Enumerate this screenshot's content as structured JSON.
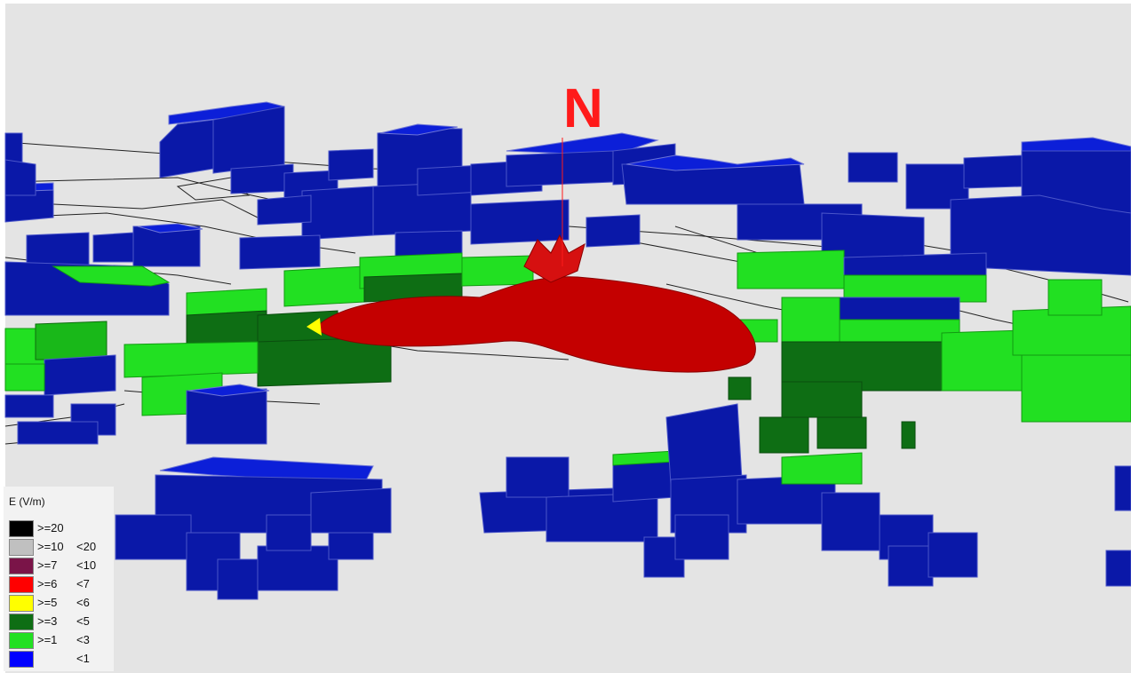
{
  "map": {
    "north_label": "N",
    "colors": {
      "background": "#e4e4e4",
      "building_low": "#0a18a8",
      "building_mid": "#19b819",
      "field_lobe": "#c00000"
    }
  },
  "legend": {
    "title": "E (V/m)",
    "items": [
      {
        "lower": ">=20",
        "upper": "",
        "color": "#000000"
      },
      {
        "lower": ">=10",
        "upper": "<20",
        "color": "#c0c0c0"
      },
      {
        "lower": ">=7",
        "upper": "<10",
        "color": "#7a1448"
      },
      {
        "lower": ">=6",
        "upper": "<7",
        "color": "#ff0000"
      },
      {
        "lower": ">=5",
        "upper": "<6",
        "color": "#ffff00"
      },
      {
        "lower": ">=3",
        "upper": "<5",
        "color": "#0e6e14"
      },
      {
        "lower": ">=1",
        "upper": "<3",
        "color": "#22e022"
      },
      {
        "lower": "",
        "upper": "<1",
        "color": "#0000ff"
      }
    ]
  }
}
